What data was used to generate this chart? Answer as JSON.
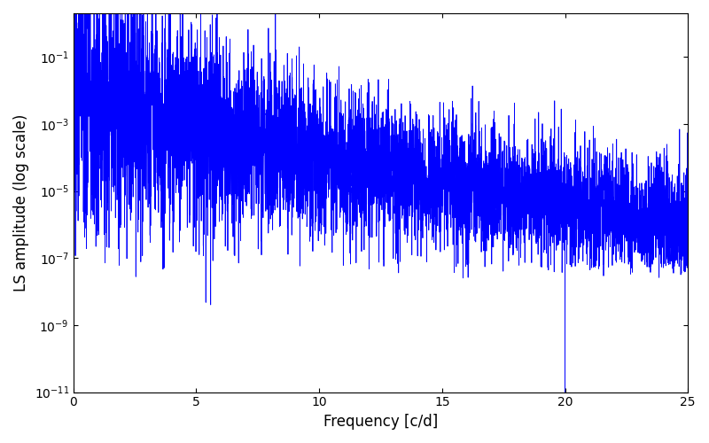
{
  "xlabel": "Frequency [c/d]",
  "ylabel": "LS amplitude (log scale)",
  "line_color": "#0000ff",
  "line_width": 0.6,
  "xlim": [
    0,
    25
  ],
  "ylim": [
    1e-11,
    2.0
  ],
  "yticks_min": 1e-10,
  "yticks_max": 1.0,
  "yscale": "log",
  "background_color": "#ffffff",
  "seed": 77,
  "n_points": 6000,
  "freq_max": 25.0,
  "deep_spike_freq": 20.0,
  "deep_spike_value": 8e-12
}
